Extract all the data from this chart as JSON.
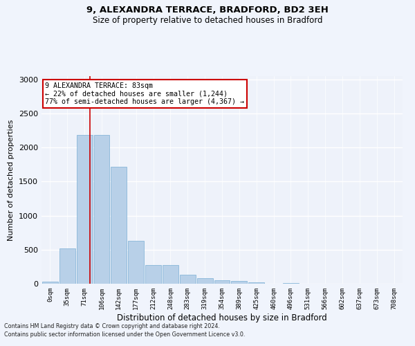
{
  "title": "9, ALEXANDRA TERRACE, BRADFORD, BD2 3EH",
  "subtitle": "Size of property relative to detached houses in Bradford",
  "xlabel": "Distribution of detached houses by size in Bradford",
  "ylabel": "Number of detached properties",
  "bar_color": "#b8d0e8",
  "bar_edge_color": "#7aafd4",
  "background_color": "#eef2fa",
  "grid_color": "#ffffff",
  "categories": [
    "0sqm",
    "35sqm",
    "71sqm",
    "106sqm",
    "142sqm",
    "177sqm",
    "212sqm",
    "248sqm",
    "283sqm",
    "319sqm",
    "354sqm",
    "389sqm",
    "425sqm",
    "460sqm",
    "496sqm",
    "531sqm",
    "566sqm",
    "602sqm",
    "637sqm",
    "673sqm",
    "708sqm"
  ],
  "values": [
    28,
    520,
    2185,
    2185,
    1720,
    635,
    275,
    275,
    135,
    85,
    50,
    40,
    25,
    5,
    10,
    0,
    0,
    0,
    0,
    0,
    0
  ],
  "annotation_text": "9 ALEXANDRA TERRACE: 83sqm\n← 22% of detached houses are smaller (1,244)\n77% of semi-detached houses are larger (4,367) →",
  "vline_color": "#cc0000",
  "annotation_box_color": "#ffffff",
  "annotation_box_edge": "#cc0000",
  "ylim": [
    0,
    3050
  ],
  "yticks": [
    0,
    500,
    1000,
    1500,
    2000,
    2500,
    3000
  ],
  "vline_x": 2.33,
  "footer_line1": "Contains HM Land Registry data © Crown copyright and database right 2024.",
  "footer_line2": "Contains public sector information licensed under the Open Government Licence v3.0."
}
